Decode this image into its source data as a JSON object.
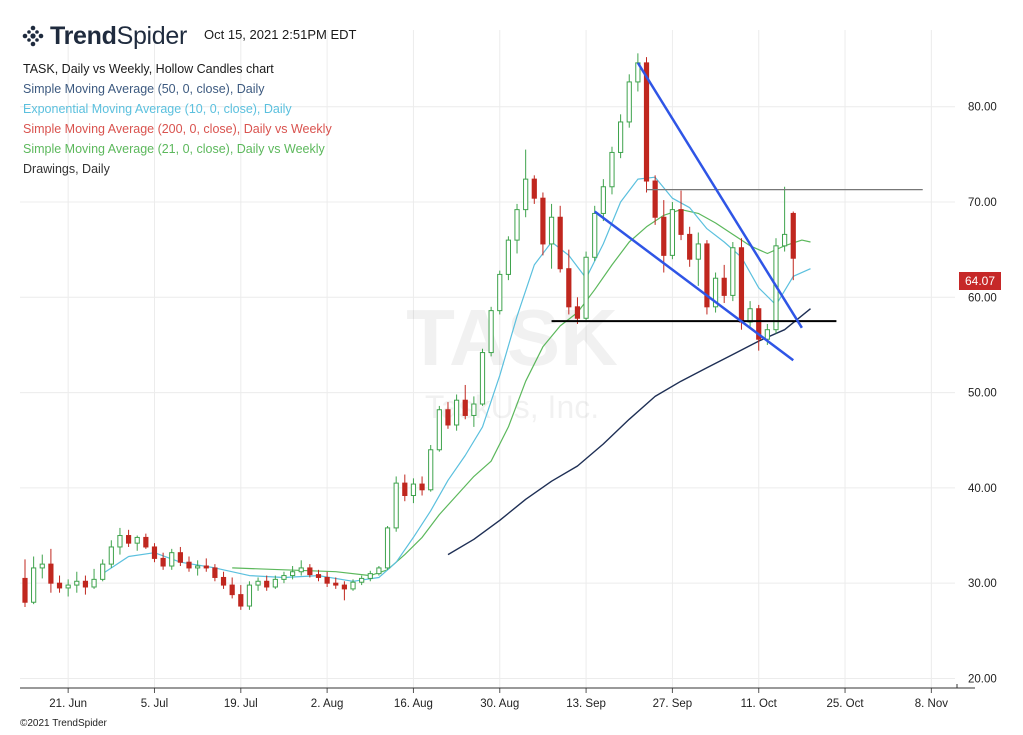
{
  "header": {
    "brand_bold": "Trend",
    "brand_light": "Spider",
    "timestamp": "Oct 15, 2021 2:51PM EDT",
    "logo_icon": "trendspider-dots-icon"
  },
  "legend": {
    "title": "TASK, Daily vs Weekly, Hollow Candles chart",
    "items": [
      {
        "label": "Simple Moving Average (50, 0, close), Daily",
        "color": "#3d5a80"
      },
      {
        "label": "Exponential Moving Average (10, 0, close), Daily",
        "color": "#5bc0de"
      },
      {
        "label": "Simple Moving Average (200, 0, close), Daily vs Weekly",
        "color": "#d9534f"
      },
      {
        "label": "Simple Moving Average (21, 0, close), Daily vs Weekly",
        "color": "#5cb85c"
      },
      {
        "label": "Drawings, Daily",
        "color": "#333333"
      }
    ]
  },
  "watermark": {
    "ticker": "TASK",
    "company": "TaskUs, Inc."
  },
  "last_price": "64.07",
  "copyright": "©2021 TrendSpider",
  "chart_data": {
    "type": "candlestick",
    "symbol": "TASK",
    "y_ticks": [
      "20.00",
      "30.00",
      "40.00",
      "50.00",
      "60.00",
      "70.00",
      "80.00"
    ],
    "ylim": [
      19,
      87
    ],
    "x_ticks": [
      "21. Jun",
      "5. Jul",
      "19. Jul",
      "2. Aug",
      "16. Aug",
      "30. Aug",
      "13. Sep",
      "27. Sep",
      "11. Oct",
      "25. Oct",
      "8. Nov"
    ],
    "x_tick_index": [
      5,
      15,
      25,
      35,
      45,
      55,
      65,
      75,
      85,
      95,
      105
    ],
    "candles": [
      [
        30.5,
        32.5,
        27.5,
        28.0
      ],
      [
        28.0,
        32.8,
        27.8,
        31.6
      ],
      [
        31.6,
        33.0,
        30.5,
        32.0
      ],
      [
        32.0,
        33.6,
        29.0,
        30.0
      ],
      [
        30.0,
        30.8,
        29.0,
        29.5
      ],
      [
        29.5,
        30.4,
        28.6,
        29.8
      ],
      [
        29.8,
        31.2,
        29.0,
        30.2
      ],
      [
        30.2,
        30.8,
        28.8,
        29.6
      ],
      [
        29.6,
        31.5,
        29.4,
        30.4
      ],
      [
        30.4,
        32.5,
        30.2,
        32.0
      ],
      [
        32.0,
        34.5,
        31.6,
        33.8
      ],
      [
        33.8,
        35.8,
        33.0,
        35.0
      ],
      [
        35.0,
        35.6,
        33.8,
        34.2
      ],
      [
        34.2,
        35.0,
        33.4,
        34.8
      ],
      [
        34.8,
        35.2,
        33.6,
        33.8
      ],
      [
        33.8,
        34.2,
        32.2,
        32.6
      ],
      [
        32.6,
        33.2,
        31.4,
        31.8
      ],
      [
        31.8,
        33.6,
        31.4,
        33.2
      ],
      [
        33.2,
        33.8,
        31.8,
        32.2
      ],
      [
        32.2,
        32.8,
        31.2,
        31.6
      ],
      [
        31.6,
        32.4,
        30.8,
        31.8
      ],
      [
        31.8,
        32.6,
        31.2,
        31.6
      ],
      [
        31.6,
        32.0,
        30.2,
        30.6
      ],
      [
        30.6,
        31.2,
        29.4,
        29.8
      ],
      [
        29.8,
        30.6,
        28.4,
        28.8
      ],
      [
        28.8,
        29.8,
        27.2,
        27.6
      ],
      [
        27.6,
        30.2,
        27.2,
        29.8
      ],
      [
        29.8,
        30.6,
        29.2,
        30.2
      ],
      [
        30.2,
        30.8,
        29.2,
        29.6
      ],
      [
        29.6,
        30.8,
        29.4,
        30.4
      ],
      [
        30.4,
        31.2,
        30.0,
        30.8
      ],
      [
        30.8,
        31.8,
        30.4,
        31.2
      ],
      [
        31.2,
        32.4,
        30.8,
        31.6
      ],
      [
        31.6,
        32.0,
        30.6,
        30.9
      ],
      [
        30.9,
        31.4,
        30.2,
        30.6
      ],
      [
        30.6,
        31.2,
        29.6,
        30.0
      ],
      [
        30.0,
        30.6,
        29.4,
        29.8
      ],
      [
        29.8,
        30.2,
        28.2,
        29.4
      ],
      [
        29.4,
        30.4,
        29.2,
        30.1
      ],
      [
        30.1,
        30.8,
        29.8,
        30.5
      ],
      [
        30.5,
        31.3,
        30.2,
        31.0
      ],
      [
        31.0,
        31.8,
        30.8,
        31.6
      ],
      [
        31.6,
        36.0,
        31.4,
        35.8
      ],
      [
        35.8,
        41.2,
        35.4,
        40.5
      ],
      [
        40.5,
        41.4,
        38.6,
        39.2
      ],
      [
        39.2,
        41.0,
        38.4,
        40.4
      ],
      [
        40.4,
        41.2,
        39.2,
        39.8
      ],
      [
        39.8,
        44.5,
        39.6,
        44.0
      ],
      [
        44.0,
        48.6,
        43.8,
        48.2
      ],
      [
        48.2,
        49.0,
        46.2,
        46.6
      ],
      [
        46.6,
        49.8,
        46.0,
        49.2
      ],
      [
        49.2,
        50.8,
        47.2,
        47.6
      ],
      [
        47.6,
        49.6,
        46.4,
        48.8
      ],
      [
        48.8,
        54.6,
        48.6,
        54.2
      ],
      [
        54.2,
        59.0,
        53.8,
        58.6
      ],
      [
        58.6,
        62.8,
        58.2,
        62.4
      ],
      [
        62.4,
        66.4,
        61.8,
        66.0
      ],
      [
        66.0,
        69.8,
        64.6,
        69.2
      ],
      [
        69.2,
        75.5,
        68.4,
        72.4
      ],
      [
        72.4,
        72.8,
        69.8,
        70.4
      ],
      [
        70.4,
        71.0,
        64.4,
        65.6
      ],
      [
        65.6,
        69.8,
        63.0,
        68.4
      ],
      [
        68.4,
        69.6,
        62.6,
        63.0
      ],
      [
        63.0,
        65.0,
        58.2,
        59.0
      ],
      [
        59.0,
        60.0,
        57.2,
        57.8
      ],
      [
        57.8,
        64.8,
        57.6,
        64.2
      ],
      [
        64.2,
        69.6,
        63.8,
        68.8
      ],
      [
        68.8,
        72.4,
        68.0,
        71.6
      ],
      [
        71.6,
        75.8,
        70.8,
        75.2
      ],
      [
        75.2,
        79.2,
        74.6,
        78.4
      ],
      [
        78.4,
        83.4,
        77.8,
        82.6
      ],
      [
        82.6,
        85.6,
        81.6,
        84.6
      ],
      [
        84.6,
        85.2,
        71.0,
        72.2
      ],
      [
        72.2,
        72.8,
        67.6,
        68.4
      ],
      [
        68.4,
        70.2,
        62.6,
        64.4
      ],
      [
        64.4,
        70.0,
        64.0,
        69.2
      ],
      [
        69.2,
        71.2,
        66.0,
        66.6
      ],
      [
        66.6,
        67.4,
        63.2,
        64.0
      ],
      [
        64.0,
        66.8,
        61.2,
        65.6
      ],
      [
        65.6,
        66.0,
        58.2,
        59.0
      ],
      [
        59.0,
        62.6,
        58.4,
        62.0
      ],
      [
        62.0,
        63.4,
        59.4,
        60.2
      ],
      [
        60.2,
        65.8,
        59.6,
        65.2
      ],
      [
        65.2,
        66.2,
        56.6,
        57.4
      ],
      [
        57.4,
        59.6,
        56.8,
        58.8
      ],
      [
        58.8,
        59.2,
        54.4,
        55.6
      ],
      [
        55.6,
        57.2,
        55.0,
        56.6
      ],
      [
        56.6,
        66.2,
        56.2,
        65.4
      ],
      [
        65.4,
        71.6,
        64.8,
        66.6
      ],
      [
        68.8,
        69.0,
        61.8,
        64.1
      ]
    ],
    "sma50": [
      [
        49,
        33.0
      ],
      [
        52,
        34.6
      ],
      [
        55,
        36.6
      ],
      [
        58,
        38.8
      ],
      [
        61,
        40.7
      ],
      [
        64,
        42.3
      ],
      [
        67,
        44.6
      ],
      [
        70,
        47.2
      ],
      [
        73,
        49.6
      ],
      [
        76,
        51.2
      ],
      [
        79,
        52.6
      ],
      [
        82,
        54.0
      ],
      [
        85,
        55.4
      ],
      [
        88,
        56.6
      ],
      [
        91,
        58.8
      ]
    ],
    "ema10": [
      [
        9,
        31.0
      ],
      [
        12,
        32.8
      ],
      [
        15,
        33.2
      ],
      [
        18,
        32.2
      ],
      [
        22,
        31.6
      ],
      [
        26,
        30.8
      ],
      [
        30,
        30.6
      ],
      [
        34,
        30.8
      ],
      [
        38,
        30.2
      ],
      [
        41,
        30.6
      ],
      [
        43,
        32.2
      ],
      [
        45,
        34.8
      ],
      [
        47,
        37.6
      ],
      [
        49,
        40.8
      ],
      [
        51,
        43.4
      ],
      [
        53,
        46.4
      ],
      [
        55,
        51.8
      ],
      [
        57,
        58.0
      ],
      [
        59,
        63.4
      ],
      [
        61,
        65.8
      ],
      [
        63,
        64.4
      ],
      [
        65,
        62.0
      ],
      [
        67,
        65.6
      ],
      [
        69,
        70.0
      ],
      [
        71,
        72.4
      ],
      [
        73,
        72.6
      ],
      [
        75,
        70.4
      ],
      [
        77,
        69.4
      ],
      [
        79,
        67.2
      ],
      [
        81,
        65.8
      ],
      [
        83,
        64.2
      ],
      [
        85,
        61.0
      ],
      [
        87,
        59.2
      ],
      [
        89,
        62.2
      ],
      [
        91,
        63.0
      ]
    ],
    "sma21": [
      [
        24,
        31.6
      ],
      [
        30,
        31.4
      ],
      [
        36,
        31.2
      ],
      [
        40,
        30.8
      ],
      [
        42,
        31.4
      ],
      [
        44,
        33.0
      ],
      [
        46,
        34.8
      ],
      [
        48,
        37.2
      ],
      [
        50,
        39.2
      ],
      [
        52,
        41.2
      ],
      [
        54,
        42.8
      ],
      [
        56,
        46.4
      ],
      [
        58,
        51.2
      ],
      [
        60,
        54.8
      ],
      [
        62,
        57.0
      ],
      [
        64,
        58.4
      ],
      [
        66,
        60.8
      ],
      [
        68,
        63.4
      ],
      [
        70,
        65.8
      ],
      [
        72,
        67.4
      ],
      [
        74,
        68.6
      ],
      [
        76,
        69.2
      ],
      [
        78,
        68.8
      ],
      [
        80,
        67.8
      ],
      [
        82,
        66.6
      ],
      [
        84,
        65.4
      ],
      [
        86,
        64.6
      ],
      [
        88,
        65.4
      ],
      [
        90,
        66.0
      ],
      [
        91,
        65.8
      ]
    ],
    "trendlines": [
      {
        "from": [
          71,
          84.6
        ],
        "to": [
          90,
          56.8
        ]
      },
      {
        "from": [
          66,
          69.0
        ],
        "to": [
          89,
          53.4
        ]
      }
    ],
    "horizontal_lines": [
      {
        "y": 71.3,
        "from": 72,
        "to": 104,
        "color": "#777777"
      },
      {
        "y": 57.5,
        "from": 61,
        "to": 94,
        "color": "#000000"
      }
    ]
  }
}
